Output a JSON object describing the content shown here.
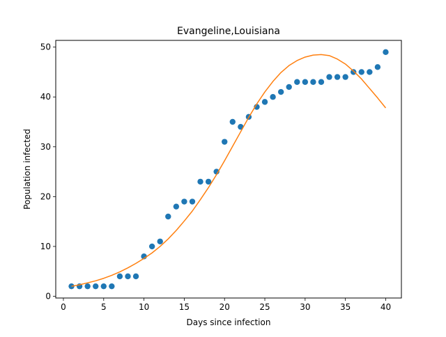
{
  "chart_data": {
    "type": "scatter",
    "title": "Evangeline,Louisiana",
    "xlabel": "Days since infection",
    "ylabel": "Population infected",
    "xlim": [
      -0.95,
      41.95
    ],
    "ylim": [
      -0.35,
      51.35
    ],
    "xticks": [
      0,
      5,
      10,
      15,
      20,
      25,
      30,
      35,
      40
    ],
    "yticks": [
      0,
      10,
      20,
      30,
      40,
      50
    ],
    "grid": false,
    "series": [
      {
        "kind": "scatter",
        "color": "#1f77b4",
        "x": [
          1,
          2,
          3,
          4,
          5,
          6,
          7,
          8,
          9,
          10,
          11,
          12,
          13,
          14,
          15,
          16,
          17,
          18,
          19,
          20,
          21,
          22,
          23,
          24,
          25,
          26,
          27,
          28,
          29,
          30,
          31,
          32,
          33,
          34,
          35,
          36,
          37,
          38,
          39,
          40
        ],
        "y": [
          2,
          2,
          2,
          2,
          2,
          2,
          4,
          4,
          4,
          8,
          10,
          11,
          16,
          18,
          19,
          19,
          23,
          23,
          25,
          31,
          35,
          34,
          36,
          38,
          39,
          40,
          41,
          42,
          43,
          43,
          43,
          43,
          44,
          44,
          44,
          45,
          45,
          45,
          46,
          49
        ]
      },
      {
        "kind": "line",
        "color": "#ff7f0e",
        "x": [
          1,
          2,
          3,
          4,
          5,
          6,
          7,
          8,
          9,
          10,
          11,
          12,
          13,
          14,
          15,
          16,
          17,
          18,
          19,
          20,
          21,
          22,
          23,
          24,
          25,
          26,
          27,
          28,
          29,
          30,
          31,
          32,
          33,
          34,
          35,
          36,
          37,
          38,
          39,
          40
        ],
        "y": [
          2.0,
          2.3,
          2.7,
          3.1,
          3.6,
          4.2,
          4.9,
          5.7,
          6.6,
          7.6,
          8.7,
          10.0,
          11.5,
          13.2,
          15.1,
          17.1,
          19.4,
          21.8,
          24.4,
          27.2,
          30.1,
          33.0,
          35.9,
          38.6,
          41.0,
          43.1,
          44.9,
          46.3,
          47.3,
          48.0,
          48.4,
          48.5,
          48.3,
          47.6,
          46.6,
          45.2,
          43.6,
          41.7,
          39.8,
          37.8
        ]
      }
    ]
  }
}
